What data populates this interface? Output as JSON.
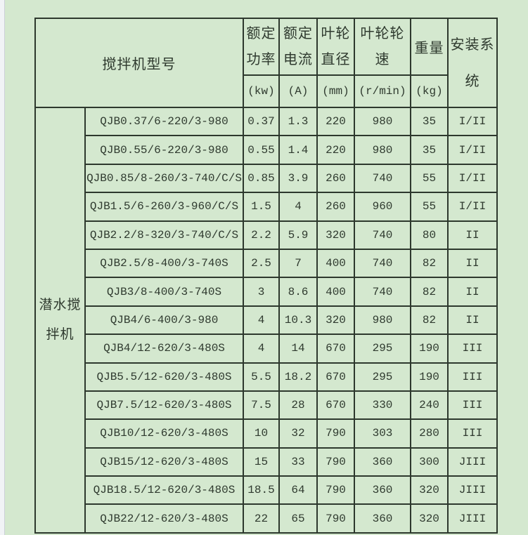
{
  "page": {
    "background_color": "#d4e8cf",
    "border_color": "#2d382d",
    "text_color": "#2f3a2f"
  },
  "table": {
    "header": {
      "model_label": "搅拌机型号",
      "columns": [
        {
          "title_lines": [
            "额定",
            "功率"
          ],
          "unit": "(kw)"
        },
        {
          "title_lines": [
            "额定",
            "电流"
          ],
          "unit": "(A)"
        },
        {
          "title_lines": [
            "叶轮",
            "直径"
          ],
          "unit": "(mm)"
        },
        {
          "title_lines": [
            "叶轮轮",
            "速"
          ],
          "unit": "(r/min)"
        },
        {
          "title_lines": [
            "重量"
          ],
          "unit": "(kg)"
        }
      ],
      "install_lines": [
        "安装系",
        "统"
      ]
    },
    "group_label_lines": [
      "潜水搅",
      "拌机"
    ],
    "rows": [
      {
        "model": "QJB0.37/6-220/3-980",
        "power": "0.37",
        "current": "1.3",
        "diameter": "220",
        "speed": "980",
        "weight": "35",
        "install": "I/II"
      },
      {
        "model": "QJB0.55/6-220/3-980",
        "power": "0.55",
        "current": "1.4",
        "diameter": "220",
        "speed": "980",
        "weight": "35",
        "install": "I/II"
      },
      {
        "model": "QJB0.85/8-260/3-740/C/S",
        "power": "0.85",
        "current": "3.9",
        "diameter": "260",
        "speed": "740",
        "weight": "55",
        "install": "I/II"
      },
      {
        "model": "QJB1.5/6-260/3-960/C/S",
        "power": "1.5",
        "current": "4",
        "diameter": "260",
        "speed": "960",
        "weight": "55",
        "install": "I/II"
      },
      {
        "model": "QJB2.2/8-320/3-740/C/S",
        "power": "2.2",
        "current": "5.9",
        "diameter": "320",
        "speed": "740",
        "weight": "80",
        "install": "II"
      },
      {
        "model": "QJB2.5/8-400/3-740S",
        "power": "2.5",
        "current": "7",
        "diameter": "400",
        "speed": "740",
        "weight": "82",
        "install": "II"
      },
      {
        "model": "QJB3/8-400/3-740S",
        "power": "3",
        "current": "8.6",
        "diameter": "400",
        "speed": "740",
        "weight": "82",
        "install": "II"
      },
      {
        "model": "QJB4/6-400/3-980",
        "power": "4",
        "current": "10.3",
        "diameter": "320",
        "speed": "980",
        "weight": "82",
        "install": "II"
      },
      {
        "model": "QJB4/12-620/3-480S",
        "power": "4",
        "current": "14",
        "diameter": "670",
        "speed": "295",
        "weight": "190",
        "install": "III"
      },
      {
        "model": "QJB5.5/12-620/3-480S",
        "power": "5.5",
        "current": "18.2",
        "diameter": "670",
        "speed": "295",
        "weight": "190",
        "install": "III"
      },
      {
        "model": "QJB7.5/12-620/3-480S",
        "power": "7.5",
        "current": "28",
        "diameter": "670",
        "speed": "330",
        "weight": "240",
        "install": "III"
      },
      {
        "model": "QJB10/12-620/3-480S",
        "power": "10",
        "current": "32",
        "diameter": "790",
        "speed": "303",
        "weight": "280",
        "install": "III"
      },
      {
        "model": "QJB15/12-620/3-480S",
        "power": "15",
        "current": "33",
        "diameter": "790",
        "speed": "360",
        "weight": "300",
        "install": "JIII"
      },
      {
        "model": "QJB18.5/12-620/3-480S",
        "power": "18.5",
        "current": "64",
        "diameter": "790",
        "speed": "360",
        "weight": "320",
        "install": "JIII"
      },
      {
        "model": "QJB22/12-620/3-480S",
        "power": "22",
        "current": "65",
        "diameter": "790",
        "speed": "360",
        "weight": "320",
        "install": "JIII"
      }
    ]
  }
}
